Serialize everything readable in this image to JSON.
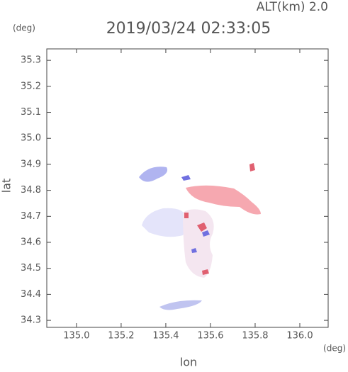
{
  "chart_data": {
    "type": "radar-map",
    "title": "2019/03/24 02:33:05",
    "subtitle": "ALT(km) 2.0",
    "x_label": "lon",
    "y_label": "lat",
    "x_unit": "(deg)",
    "y_unit": "(deg)",
    "xlim": [
      134.867,
      136.127
    ],
    "ylim": [
      34.273,
      35.344
    ],
    "xticks": [
      {
        "value": 135,
        "label": "135.0"
      },
      135.2,
      135.4,
      135.6,
      135.8,
      {
        "value": 136,
        "label": "136.0"
      }
    ],
    "yticks": [
      34.3,
      34.4,
      34.5,
      34.6,
      34.7,
      34.8,
      34.9,
      {
        "value": 35,
        "label": "35.0"
      },
      35.1,
      35.2,
      35.3
    ]
  }
}
